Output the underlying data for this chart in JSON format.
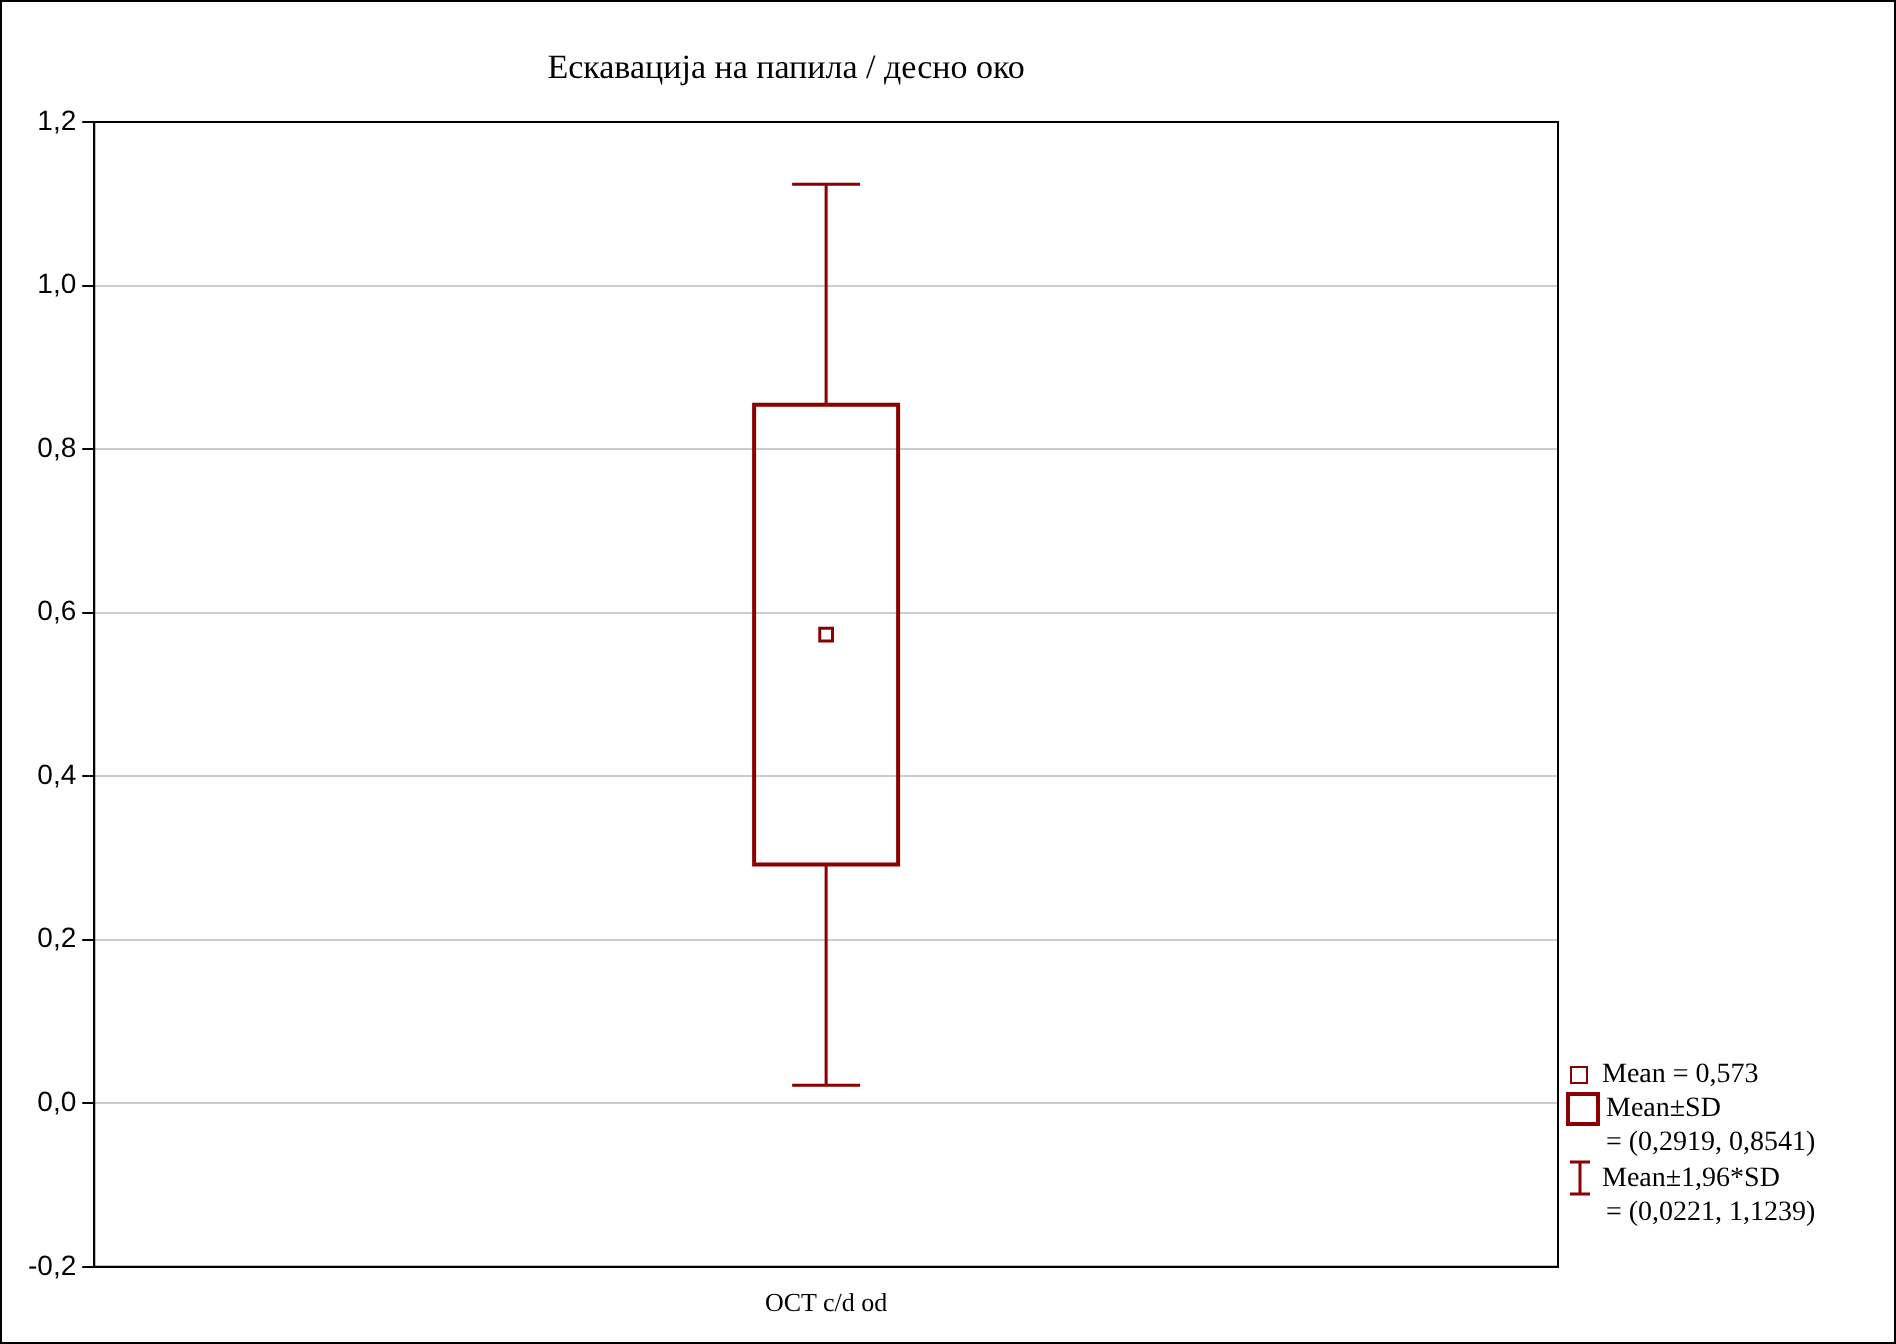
{
  "chart_data": {
    "type": "box",
    "title": "Ескавација на папила / десно око",
    "categories": [
      "OCT c/d od"
    ],
    "color": "#8b0000",
    "boxes": [
      {
        "low": 0.0221,
        "q1": 0.2919,
        "q3": 0.8541,
        "high": 1.1239,
        "mean": 0.573
      }
    ],
    "ylim": [
      -0.2,
      1.2
    ],
    "yticks": [
      {
        "value": -0.2,
        "label": "-0,2"
      },
      {
        "value": 0,
        "label": "0,0"
      },
      {
        "value": 0.2,
        "label": "0,2"
      },
      {
        "value": 0.4,
        "label": "0,4"
      },
      {
        "value": 0.6,
        "label": "0,6"
      },
      {
        "value": 0.8,
        "label": "0,8"
      },
      {
        "value": 1,
        "label": "1,0"
      },
      {
        "value": 1.2,
        "label": "1,2"
      }
    ],
    "grid": "y",
    "annotations": [
      "Mean = 0,573",
      "Mean±SD",
      "= (0,2919, 0,8541)",
      "Mean±1,96*SD",
      "= (0,0221, 1,1239)"
    ]
  }
}
